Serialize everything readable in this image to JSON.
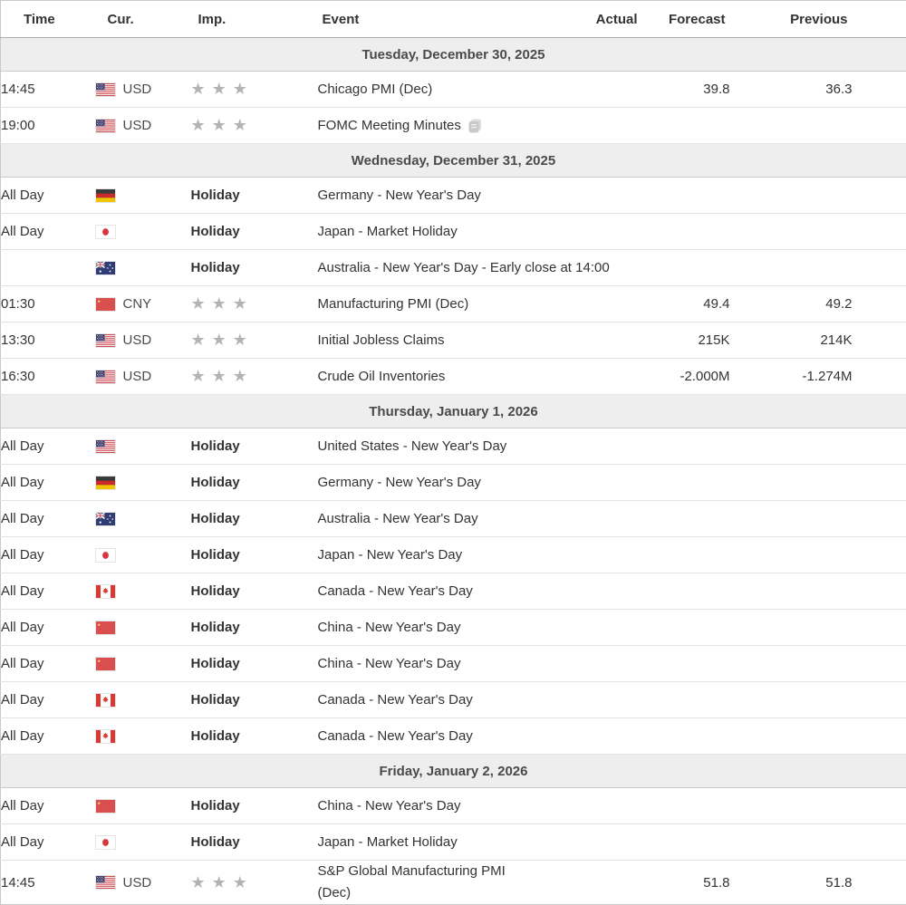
{
  "header": {
    "columns": [
      "Time",
      "Cur.",
      "Imp.",
      "Event",
      "Actual",
      "Forecast",
      "Previous"
    ]
  },
  "colors": {
    "day_row_bg": "#eeeeee",
    "day_text": "#4a4a4a",
    "row_border": "#e3e3e3",
    "group_border": "#c9c9c9",
    "star_color": "#b3b3b3",
    "text": "#333333"
  },
  "groups": [
    {
      "date": "Tuesday, December 30, 2025",
      "rows": [
        {
          "time": "14:45",
          "flag": "us",
          "currency": "USD",
          "stars": 3,
          "event": "Chicago PMI (Dec)",
          "actual": "",
          "forecast": "39.8",
          "previous": "36.3"
        },
        {
          "time": "19:00",
          "flag": "us",
          "currency": "USD",
          "stars": 3,
          "event": "FOMC Meeting Minutes",
          "event_icon": "report-icon",
          "actual": "",
          "forecast": "",
          "previous": ""
        }
      ]
    },
    {
      "date": "Wednesday, December 31, 2025",
      "rows": [
        {
          "time": "All Day",
          "flag": "de",
          "holiday": "Holiday",
          "event": "Germany - New Year's Day"
        },
        {
          "time": "All Day",
          "flag": "jp",
          "holiday": "Holiday",
          "event": "Japan - Market Holiday"
        },
        {
          "time": "",
          "flag": "au",
          "holiday": "Holiday",
          "event": "Australia - New Year's Day - Early close at 14:00"
        },
        {
          "time": "01:30",
          "flag": "cn",
          "currency": "CNY",
          "stars": 3,
          "event": "Manufacturing PMI (Dec)",
          "actual": "",
          "forecast": "49.4",
          "previous": "49.2"
        },
        {
          "time": "13:30",
          "flag": "us",
          "currency": "USD",
          "stars": 3,
          "event": "Initial Jobless Claims",
          "actual": "",
          "forecast": "215K",
          "previous": "214K"
        },
        {
          "time": "16:30",
          "flag": "us",
          "currency": "USD",
          "stars": 3,
          "event": "Crude Oil Inventories",
          "actual": "",
          "forecast": "-2.000M",
          "previous": "-1.274M"
        }
      ]
    },
    {
      "date": "Thursday, January 1, 2026",
      "rows": [
        {
          "time": "All Day",
          "flag": "us",
          "holiday": "Holiday",
          "event": "United States - New Year's Day"
        },
        {
          "time": "All Day",
          "flag": "de",
          "holiday": "Holiday",
          "event": "Germany - New Year's Day"
        },
        {
          "time": "All Day",
          "flag": "au",
          "holiday": "Holiday",
          "event": "Australia - New Year's Day"
        },
        {
          "time": "All Day",
          "flag": "jp",
          "holiday": "Holiday",
          "event": "Japan - New Year's Day"
        },
        {
          "time": "All Day",
          "flag": "ca",
          "holiday": "Holiday",
          "event": "Canada - New Year's Day"
        },
        {
          "time": "All Day",
          "flag": "cn",
          "holiday": "Holiday",
          "event": "China - New Year's Day"
        },
        {
          "time": "All Day",
          "flag": "cn",
          "holiday": "Holiday",
          "event": "China - New Year's Day"
        },
        {
          "time": "All Day",
          "flag": "ca",
          "holiday": "Holiday",
          "event": "Canada - New Year's Day"
        },
        {
          "time": "All Day",
          "flag": "ca",
          "holiday": "Holiday",
          "event": "Canada - New Year's Day"
        }
      ]
    },
    {
      "date": "Friday, January 2, 2026",
      "rows": [
        {
          "time": "All Day",
          "flag": "cn",
          "holiday": "Holiday",
          "event": "China - New Year's Day"
        },
        {
          "time": "All Day",
          "flag": "jp",
          "holiday": "Holiday",
          "event": "Japan - Market Holiday"
        },
        {
          "time": "14:45",
          "flag": "us",
          "currency": "USD",
          "stars": 3,
          "event": "S&P Global Manufacturing PMI\n(Dec)",
          "actual": "",
          "forecast": "51.8",
          "previous": "51.8"
        }
      ]
    }
  ]
}
